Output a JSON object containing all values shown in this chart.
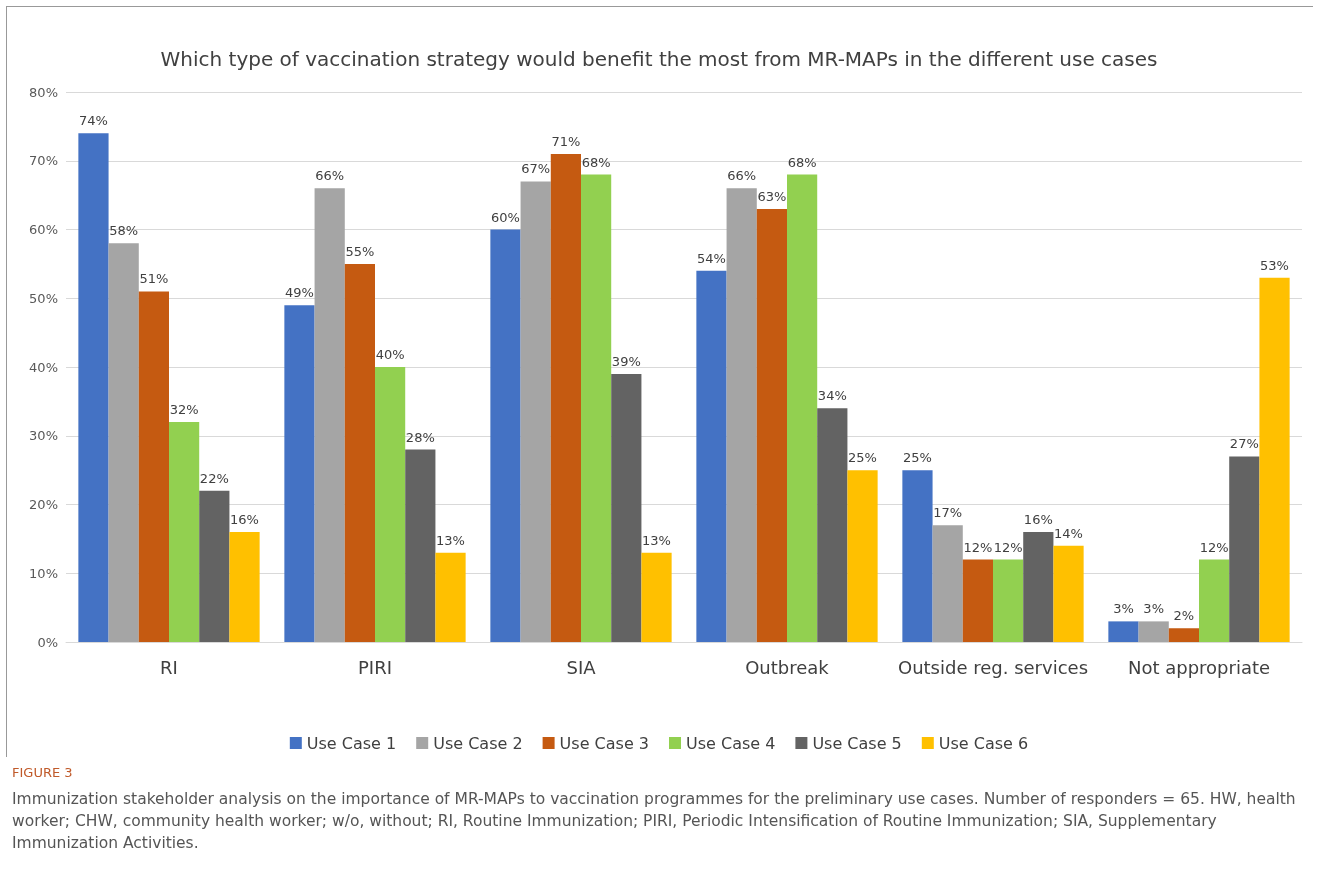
{
  "chart_data": {
    "type": "bar",
    "title": "Which type of vaccination strategy would benefit the most from MR-MAPs in the different use cases",
    "categories": [
      "RI",
      "PIRI",
      "SIA",
      "Outbreak",
      "Outside reg. services",
      "Not appropriate"
    ],
    "series": [
      {
        "name": "Use Case 1",
        "color": "#4472c4",
        "values": [
          74,
          49,
          60,
          54,
          25,
          3
        ],
        "value_labels": [
          "74%",
          "49%",
          "60%",
          "54%",
          "25%",
          "3%"
        ]
      },
      {
        "name": "Use Case 2",
        "color": "#a5a5a5",
        "values": [
          58,
          66,
          67,
          66,
          17,
          3
        ],
        "value_labels": [
          "58%",
          "66%",
          "67%",
          "66%",
          "17%",
          "3%"
        ]
      },
      {
        "name": "Use Case 3",
        "color": "#c55a11",
        "values": [
          51,
          55,
          71,
          63,
          12,
          2
        ],
        "value_labels": [
          "51%",
          "55%",
          "71%",
          "63%",
          "12%",
          "2%"
        ]
      },
      {
        "name": "Use Case 4",
        "color": "#92d050",
        "values": [
          32,
          40,
          68,
          68,
          12,
          12
        ],
        "value_labels": [
          "32%",
          "40%",
          "68%",
          "68%",
          "12%",
          "12%"
        ]
      },
      {
        "name": "Use Case 5",
        "color": "#636363",
        "values": [
          22,
          28,
          39,
          34,
          16,
          27
        ],
        "value_labels": [
          "22%",
          "28%",
          "39%",
          "34%",
          "16%",
          "27%"
        ]
      },
      {
        "name": "Use Case 6",
        "color": "#ffc000",
        "values": [
          16,
          13,
          13,
          25,
          14,
          53
        ],
        "value_labels": [
          "16%",
          "13%",
          "13%",
          "25%",
          "14%",
          "53%"
        ]
      }
    ],
    "ylim": [
      0,
      80
    ],
    "yticks": [
      {
        "value": 0,
        "label": "0%"
      },
      {
        "value": 10,
        "label": "10%"
      },
      {
        "value": 20,
        "label": "20%"
      },
      {
        "value": 30,
        "label": "30%"
      },
      {
        "value": 40,
        "label": "40%"
      },
      {
        "value": 50,
        "label": "50%"
      },
      {
        "value": 60,
        "label": "60%"
      },
      {
        "value": 70,
        "label": "70%"
      },
      {
        "value": 80,
        "label": "80%"
      }
    ],
    "grid": "y",
    "legend": "bottom",
    "annotations": [
      "FIGURE 3",
      "Immunization stakeholder analysis on the importance of MR-MAPs to vaccination programmes for the preliminary use cases. Number of responders = 65. HW, health worker; CHW, community health worker; w/o, without; RI, Routine Immunization; PIRI, Periodic Intensification of Routine Immunization; SIA, Supplementary Immunization Activities."
    ]
  }
}
